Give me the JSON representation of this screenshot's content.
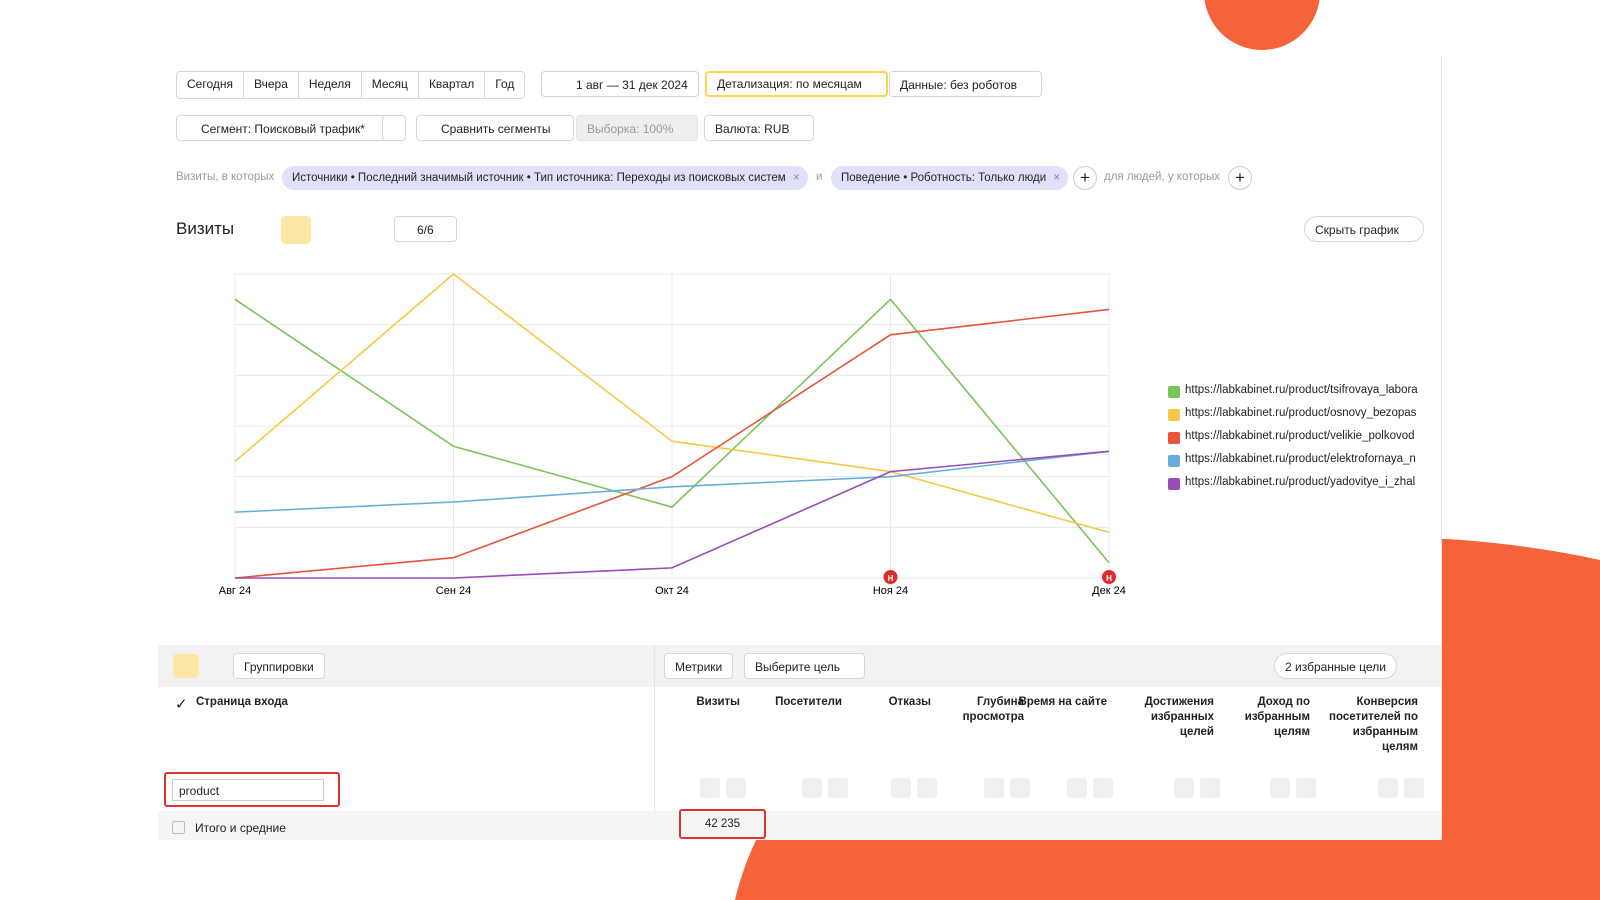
{
  "toolbar": {
    "periods": [
      "Сегодня",
      "Вчера",
      "Неделя",
      "Месяц",
      "Квартал",
      "Год"
    ],
    "date_range": "1 авг — 31 дек 2024",
    "detail": "Детализация: по месяцам",
    "data_filter": "Данные: без роботов"
  },
  "segment_bar": {
    "segment": "Сегмент: Поисковый трафик*",
    "compare": "Сравнить сегменты",
    "sample": "Выборка: 100%",
    "currency": "Валюта: RUB"
  },
  "filters": {
    "prefix": "Визиты, в которых",
    "conditions": [
      "Источники • Последний значимый источник • Тип источника: Переходы из поисковых систем",
      "Поведение • Роботность: Только люди"
    ],
    "joiner": "и",
    "people_prefix": "для людей, у которых"
  },
  "chart_header": {
    "title": "Визиты",
    "series_count": "6/6",
    "hide_button": "Скрыть график"
  },
  "chart_data": {
    "type": "line",
    "categories": [
      "Авг 24",
      "Сен 24",
      "Окт 24",
      "Ноя 24",
      "Дек 24"
    ],
    "series": [
      {
        "name": "https://labkabinet.ru/product/tsifrovaya_labora",
        "color": "#7cc35a",
        "values": [
          5.5,
          2.6,
          1.4,
          5.5,
          0.3
        ]
      },
      {
        "name": "https://labkabinet.ru/product/osnovy_bezopas",
        "color": "#f7c846",
        "values": [
          2.3,
          6.0,
          2.7,
          2.1,
          0.9
        ]
      },
      {
        "name": "https://labkabinet.ru/product/velikie_polkovod",
        "color": "#e8553a",
        "values": [
          0,
          0.4,
          2.0,
          4.8,
          5.3
        ]
      },
      {
        "name": "https://labkabinet.ru/product/elektrofornaya_n",
        "color": "#67afdb",
        "values": [
          1.3,
          1.5,
          1.8,
          2.0,
          2.5
        ]
      },
      {
        "name": "https://labkabinet.ru/product/yadovitye_i_zhal",
        "color": "#9b4bb5",
        "values": [
          0,
          0,
          0.2,
          2.1,
          2.5
        ]
      }
    ],
    "ylim": [
      0,
      6
    ],
    "grid": true,
    "legend": "right",
    "annotations": [
      {
        "x": "Ноя 24",
        "label": "Н"
      },
      {
        "x": "Дек 24",
        "label": "Н"
      }
    ]
  },
  "table": {
    "groupings": "Группировки",
    "metrics_button": "Метрики",
    "goal_select": "Выберите цель",
    "favorites": "2 избранные цели",
    "dimension": "Страница входа",
    "columns": [
      "Визиты",
      "Посетители",
      "Отказы",
      "Глубина просмотра",
      "Время на сайте",
      "Достижения избранных целей",
      "Доход по избранным целям",
      "Конверсия посетителей по избранным целям"
    ],
    "search": "product",
    "totals_label": "Итого и средние",
    "totals_visits": "42 235"
  }
}
